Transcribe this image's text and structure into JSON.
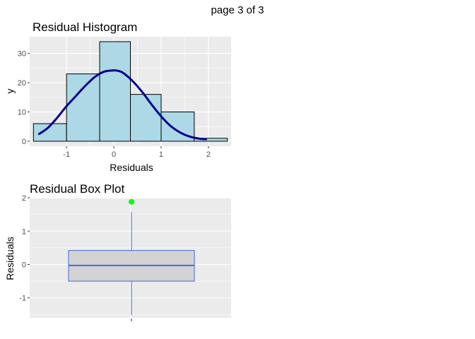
{
  "page_label": "page 3 of 3",
  "colors": {
    "panel": "#EBEBEB",
    "grid_major": "#FFFFFF",
    "hist_fill": "#ADD8E6",
    "hist_outline": "#000000",
    "density_line": "#00008B",
    "box_fill": "#D3D3D3",
    "box_outline": "#4169E1",
    "outlier": "#00FF00"
  },
  "chart_data": [
    {
      "type": "bar",
      "title": "Residual Histogram",
      "xlabel": "Residuals",
      "ylabel": "y",
      "xlim": [
        -1.78,
        2.48
      ],
      "ylim": [
        -1.7,
        35.7
      ],
      "x_ticks": [
        -1,
        0,
        1,
        2
      ],
      "y_ticks": [
        0,
        10,
        20,
        30
      ],
      "grid": true,
      "bins": [
        {
          "x0": -1.7,
          "x1": -1.0,
          "count": 6
        },
        {
          "x0": -1.0,
          "x1": -0.3,
          "count": 23
        },
        {
          "x0": -0.3,
          "x1": 0.35,
          "count": 34
        },
        {
          "x0": 0.35,
          "x1": 1.0,
          "count": 16
        },
        {
          "x0": 1.0,
          "x1": 1.7,
          "count": 10
        },
        {
          "x0": 1.7,
          "x1": 2.4,
          "count": 1
        }
      ],
      "density_curve": {
        "x": [
          -1.58,
          -1.4,
          -1.2,
          -1.0,
          -0.8,
          -0.6,
          -0.4,
          -0.2,
          0.0,
          0.1,
          0.2,
          0.4,
          0.6,
          0.8,
          1.0,
          1.2,
          1.4,
          1.6,
          1.8,
          1.95
        ],
        "y": [
          2.5,
          4.5,
          8.0,
          12.0,
          15.5,
          19.0,
          22.0,
          23.8,
          24.2,
          24.0,
          23.3,
          20.5,
          16.8,
          12.5,
          8.5,
          5.2,
          3.0,
          1.6,
          0.9,
          0.7
        ]
      }
    },
    {
      "type": "box",
      "title": "Residual Box Plot",
      "xlabel": "",
      "ylabel": "Residuals",
      "ylim": [
        -1.6,
        1.98
      ],
      "y_ticks": [
        -1,
        0,
        1,
        2
      ],
      "grid": true,
      "box": {
        "lower_whisker": -1.52,
        "q1": -0.5,
        "median": -0.03,
        "q3": 0.42,
        "upper_whisker": 1.57,
        "outliers": [
          1.88
        ]
      }
    }
  ]
}
